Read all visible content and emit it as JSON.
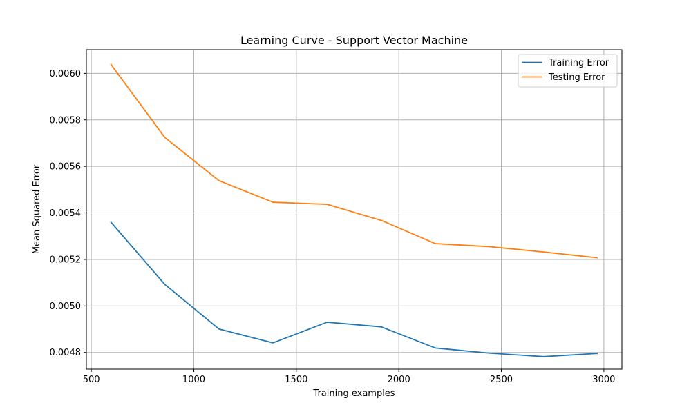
{
  "chart_data": {
    "type": "line",
    "title": "Learning Curve - Support Vector Machine",
    "xlabel": "Training examples",
    "ylabel": "Mean Squared Error",
    "xlim": [
      476,
      3088
    ],
    "ylim": [
      0.004728,
      0.006102
    ],
    "xticks": [
      500,
      1000,
      1500,
      2000,
      2500,
      3000
    ],
    "yticks": [
      0.0048,
      0.005,
      0.0052,
      0.0054,
      0.0056,
      0.0058,
      0.006
    ],
    "ytick_labels": [
      "0.0048",
      "0.0050",
      "0.0052",
      "0.0054",
      "0.0056",
      "0.0058",
      "0.0060"
    ],
    "grid": true,
    "legend_position": "top-right",
    "x": [
      594,
      858,
      1122,
      1386,
      1650,
      1914,
      2178,
      2442,
      2706,
      2970
    ],
    "series": [
      {
        "name": "Training Error",
        "color": "#1f77b4",
        "values": [
          0.005362,
          0.005093,
          0.004901,
          0.004841,
          0.00493,
          0.00491,
          0.004819,
          0.004797,
          0.004782,
          0.004796
        ]
      },
      {
        "name": "Testing Error",
        "color": "#ff7f0e",
        "values": [
          0.006041,
          0.005725,
          0.005539,
          0.005446,
          0.005437,
          0.005368,
          0.005268,
          0.005255,
          0.005232,
          0.005207
        ]
      }
    ]
  }
}
